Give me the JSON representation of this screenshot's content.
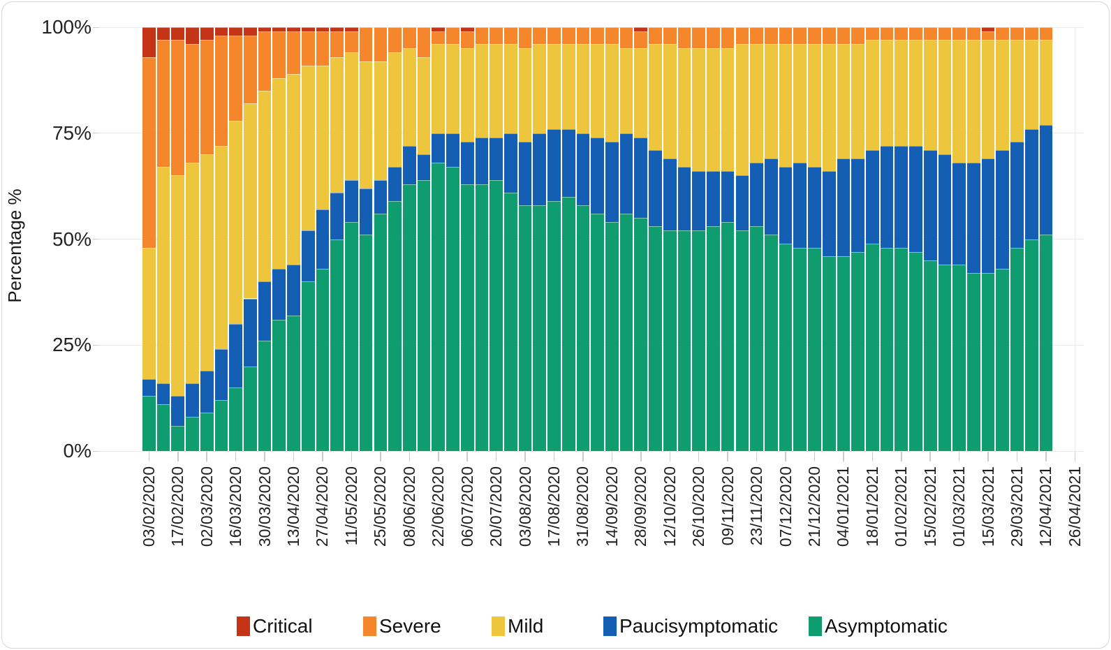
{
  "figure": {
    "background": "#ffffff",
    "border_color": "#d6d6d6"
  },
  "chart_data": {
    "type": "bar",
    "stacked": true,
    "percent_stacked": true,
    "title": "",
    "xlabel": "",
    "ylabel": "Percentage %",
    "ylim": [
      0,
      100
    ],
    "grid": "on",
    "y_ticks": [
      "0%",
      "25%",
      "50%",
      "75%",
      "100%"
    ],
    "x_tick_labels": [
      "03/02/2020",
      "17/02/2020",
      "02/03/2020",
      "16/03/2020",
      "30/03/2020",
      "13/04/2020",
      "27/04/2020",
      "11/05/2020",
      "25/05/2020",
      "08/06/2020",
      "22/06/2020",
      "06/07/2020",
      "20/07/2020",
      "03/08/2020",
      "17/08/2020",
      "31/08/2020",
      "14/09/2020",
      "28/09/2020",
      "12/10/2020",
      "26/10/2020",
      "09/11/2020",
      "23/11/2020",
      "07/12/2020",
      "21/12/2020",
      "04/01/2021",
      "18/01/2021",
      "01/02/2021",
      "15/02/2021",
      "01/03/2021",
      "15/03/2021",
      "29/03/2021",
      "12/04/2021",
      "26/04/2021"
    ],
    "categories": [
      "03/02/2020",
      "10/02/2020",
      "17/02/2020",
      "24/02/2020",
      "02/03/2020",
      "09/03/2020",
      "16/03/2020",
      "23/03/2020",
      "30/03/2020",
      "06/04/2020",
      "13/04/2020",
      "20/04/2020",
      "27/04/2020",
      "04/05/2020",
      "11/05/2020",
      "18/05/2020",
      "25/05/2020",
      "01/06/2020",
      "08/06/2020",
      "15/06/2020",
      "22/06/2020",
      "29/06/2020",
      "06/07/2020",
      "13/07/2020",
      "20/07/2020",
      "27/07/2020",
      "03/08/2020",
      "10/08/2020",
      "17/08/2020",
      "24/08/2020",
      "31/08/2020",
      "07/09/2020",
      "14/09/2020",
      "21/09/2020",
      "28/09/2020",
      "05/10/2020",
      "12/10/2020",
      "19/10/2020",
      "26/10/2020",
      "02/11/2020",
      "09/11/2020",
      "16/11/2020",
      "23/11/2020",
      "30/11/2020",
      "07/12/2020",
      "14/12/2020",
      "21/12/2020",
      "28/12/2020",
      "04/01/2021",
      "11/01/2021",
      "18/01/2021",
      "25/01/2021",
      "01/02/2021",
      "08/02/2021",
      "15/02/2021",
      "22/02/2021",
      "01/03/2021",
      "08/03/2021",
      "15/03/2021",
      "22/03/2021",
      "29/03/2021",
      "05/04/2021",
      "12/04/2021"
    ],
    "series": [
      {
        "name": "Asymptomatic",
        "color": "#0F9D70",
        "values": [
          13,
          11,
          6,
          8,
          9,
          12,
          15,
          20,
          26,
          31,
          32,
          40,
          43,
          50,
          54,
          51,
          56,
          59,
          63,
          64,
          68,
          67,
          63,
          63,
          64,
          61,
          58,
          58,
          59,
          60,
          58,
          56,
          54,
          56,
          55,
          53,
          52,
          52,
          52,
          53,
          54,
          52,
          53,
          51,
          49,
          48,
          48,
          46,
          46,
          47,
          49,
          48,
          48,
          47,
          45,
          44,
          44,
          42,
          42,
          43,
          48,
          50,
          51
        ]
      },
      {
        "name": "Paucisymptomatic",
        "color": "#145FB4",
        "values": [
          4,
          5,
          7,
          8,
          10,
          12,
          15,
          16,
          14,
          12,
          12,
          12,
          14,
          11,
          10,
          11,
          8,
          8,
          9,
          6,
          7,
          8,
          10,
          11,
          10,
          14,
          15,
          17,
          17,
          16,
          17,
          18,
          19,
          19,
          19,
          18,
          17,
          15,
          14,
          13,
          12,
          13,
          15,
          18,
          18,
          20,
          19,
          20,
          23,
          22,
          22,
          24,
          24,
          25,
          26,
          26,
          24,
          26,
          27,
          28,
          25,
          26,
          26
        ]
      },
      {
        "name": "Mild",
        "color": "#EDC63E",
        "values": [
          31,
          51,
          52,
          52,
          51,
          48,
          48,
          46,
          45,
          45,
          45,
          39,
          34,
          32,
          30,
          30,
          28,
          27,
          23,
          23,
          21,
          21,
          22,
          22,
          22,
          21,
          22,
          21,
          20,
          20,
          21,
          22,
          23,
          20,
          21,
          25,
          27,
          28,
          29,
          29,
          29,
          31,
          28,
          27,
          29,
          28,
          29,
          30,
          27,
          27,
          26,
          25,
          25,
          25,
          26,
          27,
          29,
          29,
          28,
          26,
          24,
          21,
          20
        ]
      },
      {
        "name": "Severe",
        "color": "#F6862B",
        "values": [
          45,
          30,
          32,
          28,
          27,
          26,
          20,
          16,
          14,
          11,
          10,
          8,
          8,
          6,
          5,
          8,
          8,
          6,
          5,
          7,
          3,
          4,
          4,
          4,
          4,
          4,
          5,
          4,
          4,
          4,
          4,
          4,
          4,
          5,
          4,
          4,
          4,
          5,
          5,
          5,
          5,
          4,
          4,
          4,
          4,
          4,
          4,
          4,
          4,
          4,
          3,
          3,
          3,
          3,
          3,
          3,
          3,
          3,
          2,
          3,
          3,
          3,
          3
        ]
      },
      {
        "name": "Critical",
        "color": "#C53417",
        "values": [
          7,
          3,
          3,
          4,
          3,
          2,
          2,
          2,
          1,
          1,
          1,
          1,
          1,
          1,
          1,
          0,
          0,
          0,
          0,
          0,
          1,
          0,
          1,
          0,
          0,
          0,
          0,
          0,
          0,
          0,
          0,
          0,
          0,
          0,
          1,
          0,
          0,
          0,
          0,
          0,
          0,
          0,
          0,
          0,
          0,
          0,
          0,
          0,
          0,
          0,
          0,
          0,
          0,
          0,
          0,
          0,
          0,
          0,
          1,
          0,
          0,
          0,
          0
        ]
      }
    ],
    "legend": {
      "position": "bottom",
      "items": [
        "Critical",
        "Severe",
        "Mild",
        "Paucisymptomatic",
        "Asymptomatic"
      ]
    }
  }
}
